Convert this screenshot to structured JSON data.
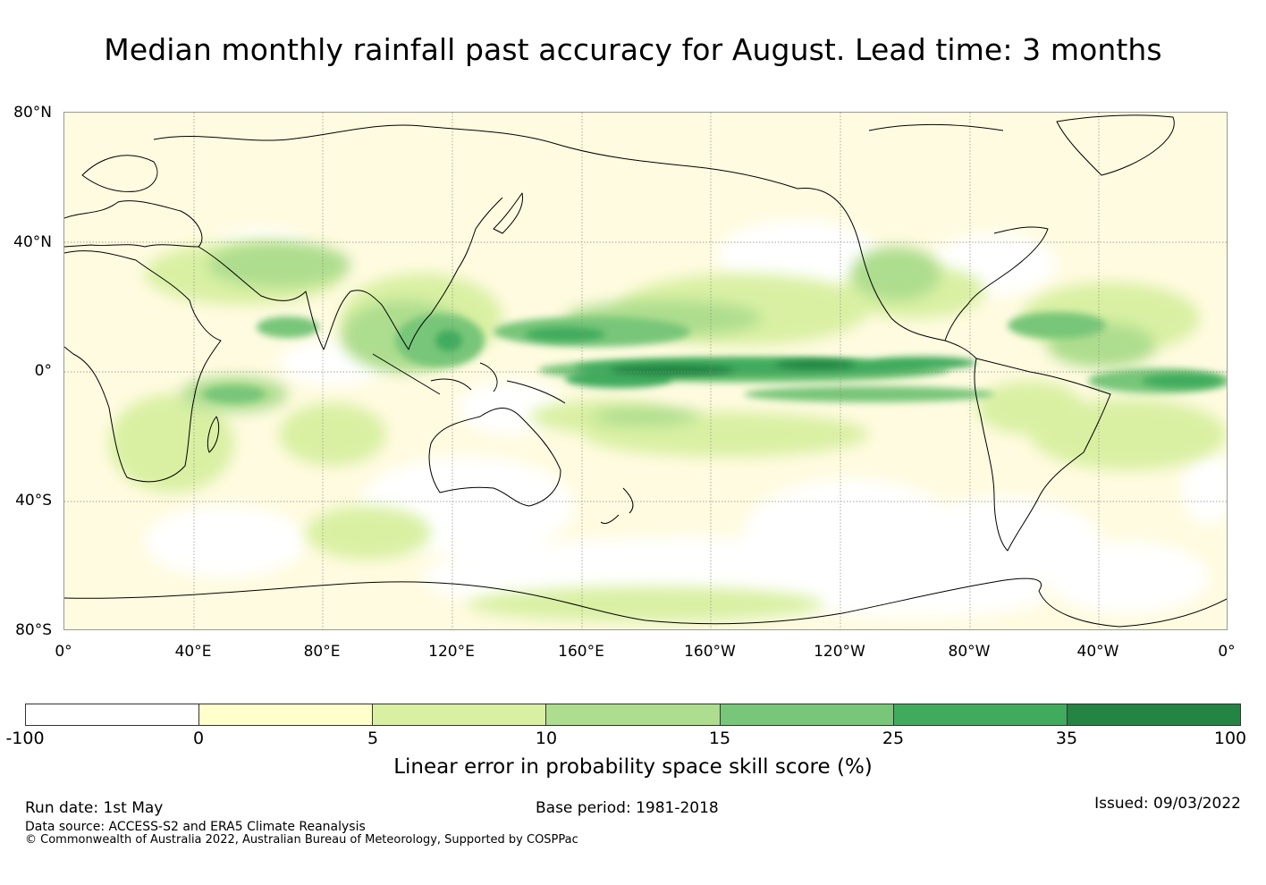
{
  "title": "Median monthly rainfall past accuracy for August. Lead time: 3 months",
  "map": {
    "lat_labels": [
      "80°N",
      "40°N",
      "0°",
      "40°S",
      "80°S"
    ],
    "lon_labels": [
      "0°",
      "40°E",
      "80°E",
      "120°E",
      "160°E",
      "160°W",
      "120°W",
      "80°W",
      "40°W",
      "0°"
    ],
    "colors": {
      "background": "#fffbe0",
      "grid": "#888888",
      "coast": "#000000"
    }
  },
  "colorbar": {
    "label": "Linear error in probability space skill score (%)",
    "ticks": [
      "-100",
      "0",
      "5",
      "10",
      "15",
      "25",
      "35",
      "100"
    ],
    "colors": [
      "#ffffff",
      "#ffffcc",
      "#d9f0a3",
      "#addd8e",
      "#78c679",
      "#41ab5d",
      "#238443"
    ]
  },
  "footer": {
    "run_date": "Run date: 1st May",
    "base_period": "Base period: 1981-2018",
    "issued": "Issued: 09/03/2022",
    "data_source": "Data source: ACCESS-S2 and ERA5 Climate Reanalysis",
    "copyright": "© Commonwealth of Australia 2022, Australian Bureau of Meteorology, Supported by COSPPac"
  }
}
